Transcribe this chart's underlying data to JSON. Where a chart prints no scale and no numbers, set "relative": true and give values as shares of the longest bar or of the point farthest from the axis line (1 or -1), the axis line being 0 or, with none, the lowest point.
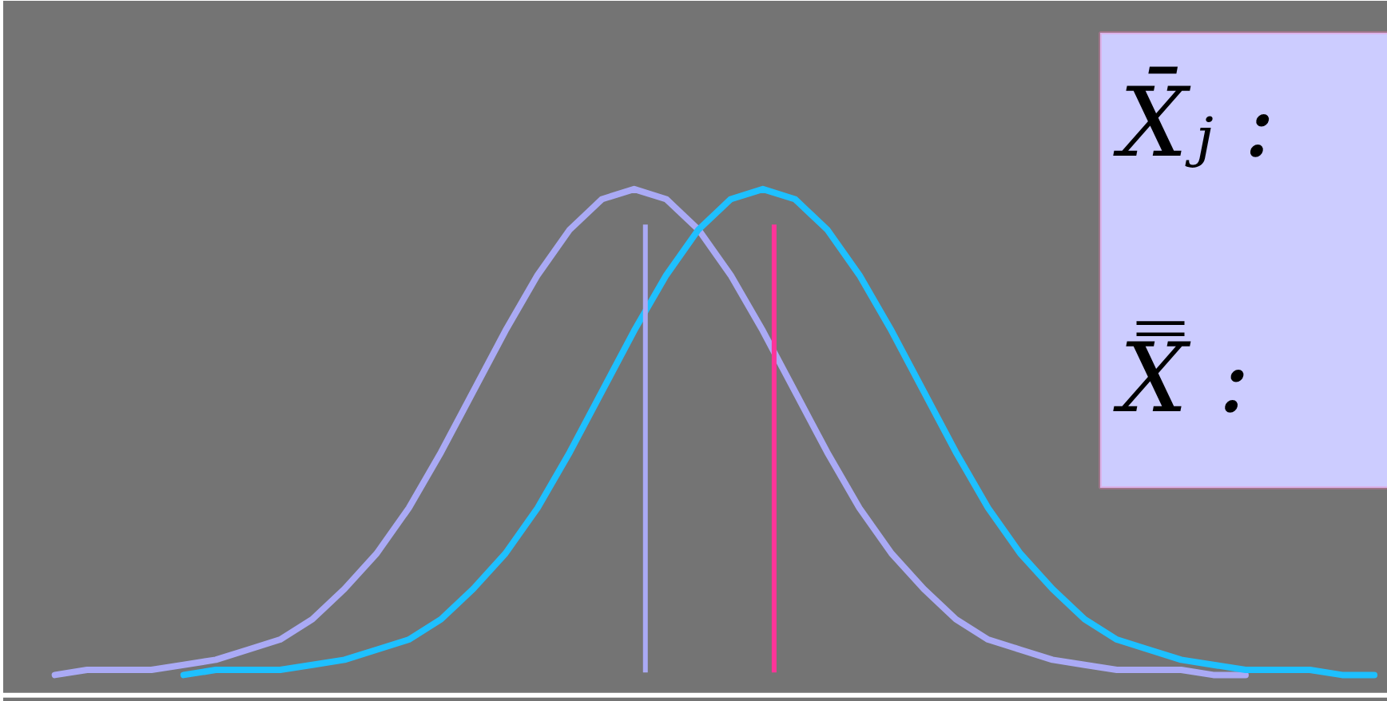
{
  "chart_data": {
    "type": "line",
    "relative": true,
    "marker": "none",
    "line_style": "solid",
    "categories": [
      null,
      null,
      null,
      null,
      null,
      null,
      null,
      null,
      null,
      null,
      null,
      null,
      null,
      null,
      null,
      null,
      null,
      null,
      null,
      null,
      null,
      null,
      null,
      null,
      null,
      null,
      null,
      null,
      null,
      null,
      null,
      null,
      null,
      null,
      null,
      null,
      null,
      null,
      null,
      null,
      null,
      null
    ],
    "series": [
      {
        "color": "#aaaaf5",
        "values": [
          0.04,
          0.05,
          0.05,
          0.05,
          0.06,
          0.07,
          0.09,
          0.11,
          0.15,
          0.21,
          0.28,
          0.37,
          0.48,
          0.6,
          0.72,
          0.83,
          0.92,
          0.98,
          1.0,
          0.98,
          0.92,
          0.83,
          0.72,
          0.6,
          0.48,
          0.37,
          0.28,
          0.21,
          0.15,
          0.11,
          0.09,
          0.07,
          0.06,
          0.05,
          0.05,
          0.05,
          0.04,
          0.04,
          null,
          null,
          null,
          null
        ]
      },
      {
        "color": "#1ec0ff",
        "values": [
          null,
          null,
          null,
          null,
          0.04,
          0.05,
          0.05,
          0.05,
          0.06,
          0.07,
          0.09,
          0.11,
          0.15,
          0.21,
          0.28,
          0.37,
          0.48,
          0.6,
          0.72,
          0.83,
          0.92,
          0.98,
          1.0,
          0.98,
          0.92,
          0.83,
          0.72,
          0.6,
          0.48,
          0.37,
          0.28,
          0.21,
          0.15,
          0.11,
          0.09,
          0.07,
          0.06,
          0.05,
          0.05,
          0.05,
          0.04,
          0.04
        ]
      }
    ],
    "annotations": [
      "X̄ⱼ :",
      "X̿ :"
    ]
  }
}
